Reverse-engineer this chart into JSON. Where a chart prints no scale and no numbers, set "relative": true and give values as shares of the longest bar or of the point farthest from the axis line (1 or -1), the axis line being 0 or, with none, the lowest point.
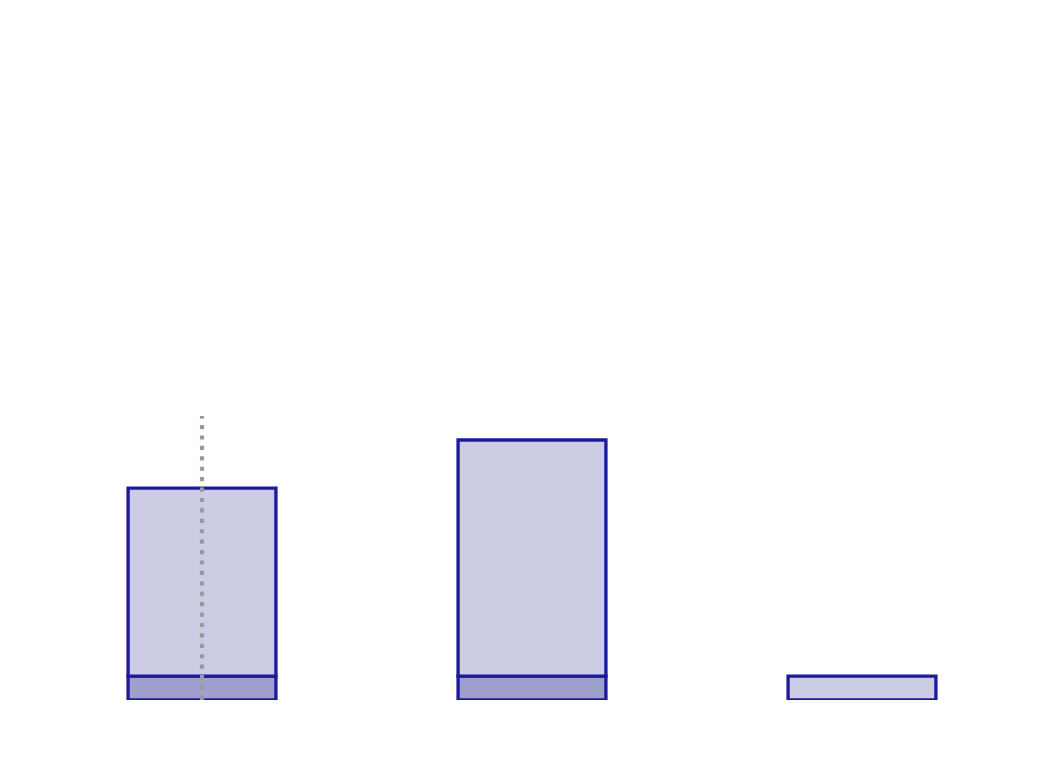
{
  "chart_data": {
    "type": "bar",
    "relative": true,
    "stacked": true,
    "categories": [
      null,
      null,
      null
    ],
    "series": [
      {
        "color": "#a0a0cc",
        "values": [
          0.092,
          0.092,
          0
        ]
      },
      {
        "color": "#cccce4",
        "values": [
          0.723,
          0.908,
          0.092
        ]
      }
    ],
    "grid": false,
    "legend": false
  }
}
